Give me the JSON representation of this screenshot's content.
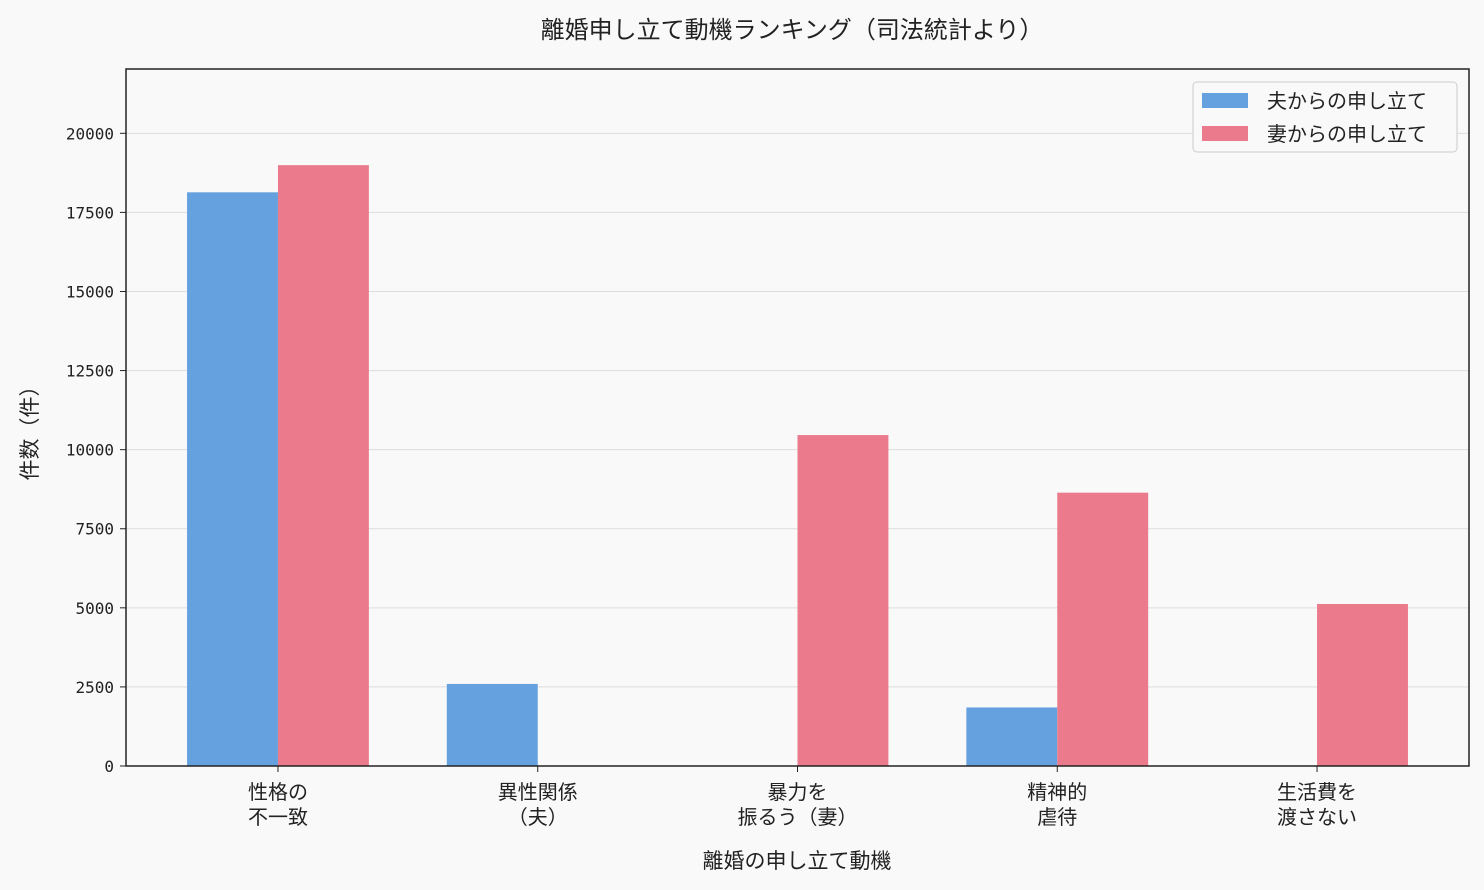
{
  "chart_data": {
    "type": "bar",
    "title": "離婚申し立て動機ランキング（司法統計より）",
    "xlabel": "離婚の申し立て動機",
    "ylabel": "件数（件）",
    "categories": [
      [
        "性格の",
        "不一致"
      ],
      [
        "異性関係",
        "（夫）"
      ],
      [
        "暴力を",
        "振るう（妻）"
      ],
      [
        "精神的",
        "虐待"
      ],
      [
        "生活費を",
        "渡さない"
      ]
    ],
    "series": [
      {
        "name": "夫からの申し立て",
        "color": "#65a1de",
        "values": [
          18135,
          2594,
          null,
          1851,
          null
        ],
        "labels": [
          "18,135",
          "2,594",
          "",
          "1,851",
          ""
        ]
      },
      {
        "name": "妻からの申し立て",
        "color": "#eb7b8c",
        "values": [
          18994,
          null,
          10461,
          8640,
          5121
        ],
        "labels": [
          "18,994",
          "",
          "10,461",
          "8,640",
          "5,121"
        ]
      }
    ],
    "ylim": [
      0,
      22033
    ],
    "yticks": [
      0,
      2500,
      5000,
      7500,
      10000,
      12500,
      15000,
      17500,
      20000
    ],
    "grid": "y",
    "legend": "top-right"
  }
}
